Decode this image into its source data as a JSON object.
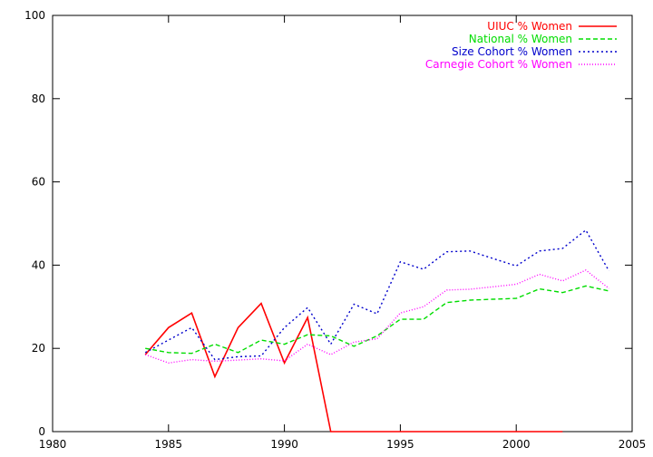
{
  "chart_data": {
    "type": "line",
    "title": "",
    "xlabel": "",
    "ylabel": "",
    "xlim": [
      1980,
      2005
    ],
    "ylim": [
      0,
      100
    ],
    "xticks": [
      1980,
      1985,
      1990,
      1995,
      2000,
      2005
    ],
    "yticks": [
      0,
      20,
      40,
      60,
      80,
      100
    ],
    "xtick_labels": [
      "1980",
      "1985",
      "1990",
      "1995",
      "2000",
      "2005"
    ],
    "ytick_labels": [
      "0",
      "20",
      "40",
      "60",
      "80",
      "100"
    ],
    "grid": false,
    "legend_position": "top-right",
    "series": [
      {
        "name": "UIUC % Women",
        "color": "#ff0000",
        "dash": "solid",
        "points": [
          [
            1984,
            18.5
          ],
          [
            1985,
            25
          ],
          [
            1986,
            28.5
          ],
          [
            1987,
            13.2
          ],
          [
            1988,
            25
          ],
          [
            1989,
            30.8
          ],
          [
            1990,
            16.5
          ],
          [
            1991,
            27.4
          ],
          [
            1992,
            0
          ],
          [
            1993,
            0
          ],
          [
            1994,
            0
          ],
          [
            1995,
            0
          ],
          [
            1996,
            0
          ],
          [
            1997,
            0
          ],
          [
            1998,
            0
          ],
          [
            1999,
            0
          ],
          [
            2000,
            0
          ],
          [
            2001,
            0
          ],
          [
            2002,
            0
          ]
        ]
      },
      {
        "name": "National % Women",
        "color": "#00dd00",
        "dash": "dashed",
        "points": [
          [
            1984,
            20
          ],
          [
            1985,
            19
          ],
          [
            1986,
            18.8
          ],
          [
            1987,
            21
          ],
          [
            1988,
            19
          ],
          [
            1989,
            22
          ],
          [
            1990,
            21
          ],
          [
            1991,
            23.3
          ],
          [
            1992,
            23
          ],
          [
            1993,
            20.5
          ],
          [
            1994,
            23
          ],
          [
            1995,
            27
          ],
          [
            1996,
            27
          ],
          [
            1997,
            31
          ],
          [
            1998,
            31.6
          ],
          [
            1999,
            31.8
          ],
          [
            2000,
            32
          ],
          [
            2001,
            34.3
          ],
          [
            2002,
            33.4
          ],
          [
            2003,
            35
          ],
          [
            2004,
            33.8
          ]
        ]
      },
      {
        "name": "Size Cohort % Women",
        "color": "#0000cc",
        "dash": "dotted",
        "points": [
          [
            1984,
            19
          ],
          [
            1985,
            22
          ],
          [
            1986,
            25
          ],
          [
            1987,
            17.3
          ],
          [
            1988,
            18
          ],
          [
            1989,
            18.2
          ],
          [
            1990,
            25
          ],
          [
            1991,
            29.8
          ],
          [
            1992,
            21
          ],
          [
            1993,
            30.6
          ],
          [
            1994,
            28.3
          ],
          [
            1995,
            40.8
          ],
          [
            1996,
            39
          ],
          [
            1997,
            43.2
          ],
          [
            1998,
            43.4
          ],
          [
            1999,
            41.6
          ],
          [
            2000,
            39.8
          ],
          [
            2001,
            43.4
          ],
          [
            2002,
            44
          ],
          [
            2003,
            48.4
          ],
          [
            2004,
            38.6
          ]
        ]
      },
      {
        "name": "Carnegie Cohort % Women",
        "color": "#ff00ff",
        "dash": "dotted-fine",
        "points": [
          [
            1984,
            18.5
          ],
          [
            1985,
            16.5
          ],
          [
            1986,
            17.3
          ],
          [
            1987,
            16.9
          ],
          [
            1988,
            17.2
          ],
          [
            1989,
            17.5
          ],
          [
            1990,
            17
          ],
          [
            1991,
            21
          ],
          [
            1992,
            18.5
          ],
          [
            1993,
            21.5
          ],
          [
            1994,
            22.3
          ],
          [
            1995,
            28.5
          ],
          [
            1996,
            30
          ],
          [
            1997,
            34
          ],
          [
            1998,
            34.2
          ],
          [
            1999,
            34.8
          ],
          [
            2000,
            35.4
          ],
          [
            2001,
            37.8
          ],
          [
            2002,
            36.2
          ],
          [
            2003,
            38.8
          ],
          [
            2004,
            34.4
          ]
        ]
      }
    ]
  }
}
